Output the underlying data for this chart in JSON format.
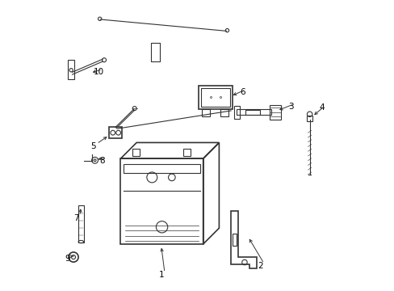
{
  "background_color": "#ffffff",
  "line_color": "#333333",
  "label_color": "#000000",
  "lw_thin": 0.8,
  "lw_med": 1.2,
  "lw_thick": 1.5
}
